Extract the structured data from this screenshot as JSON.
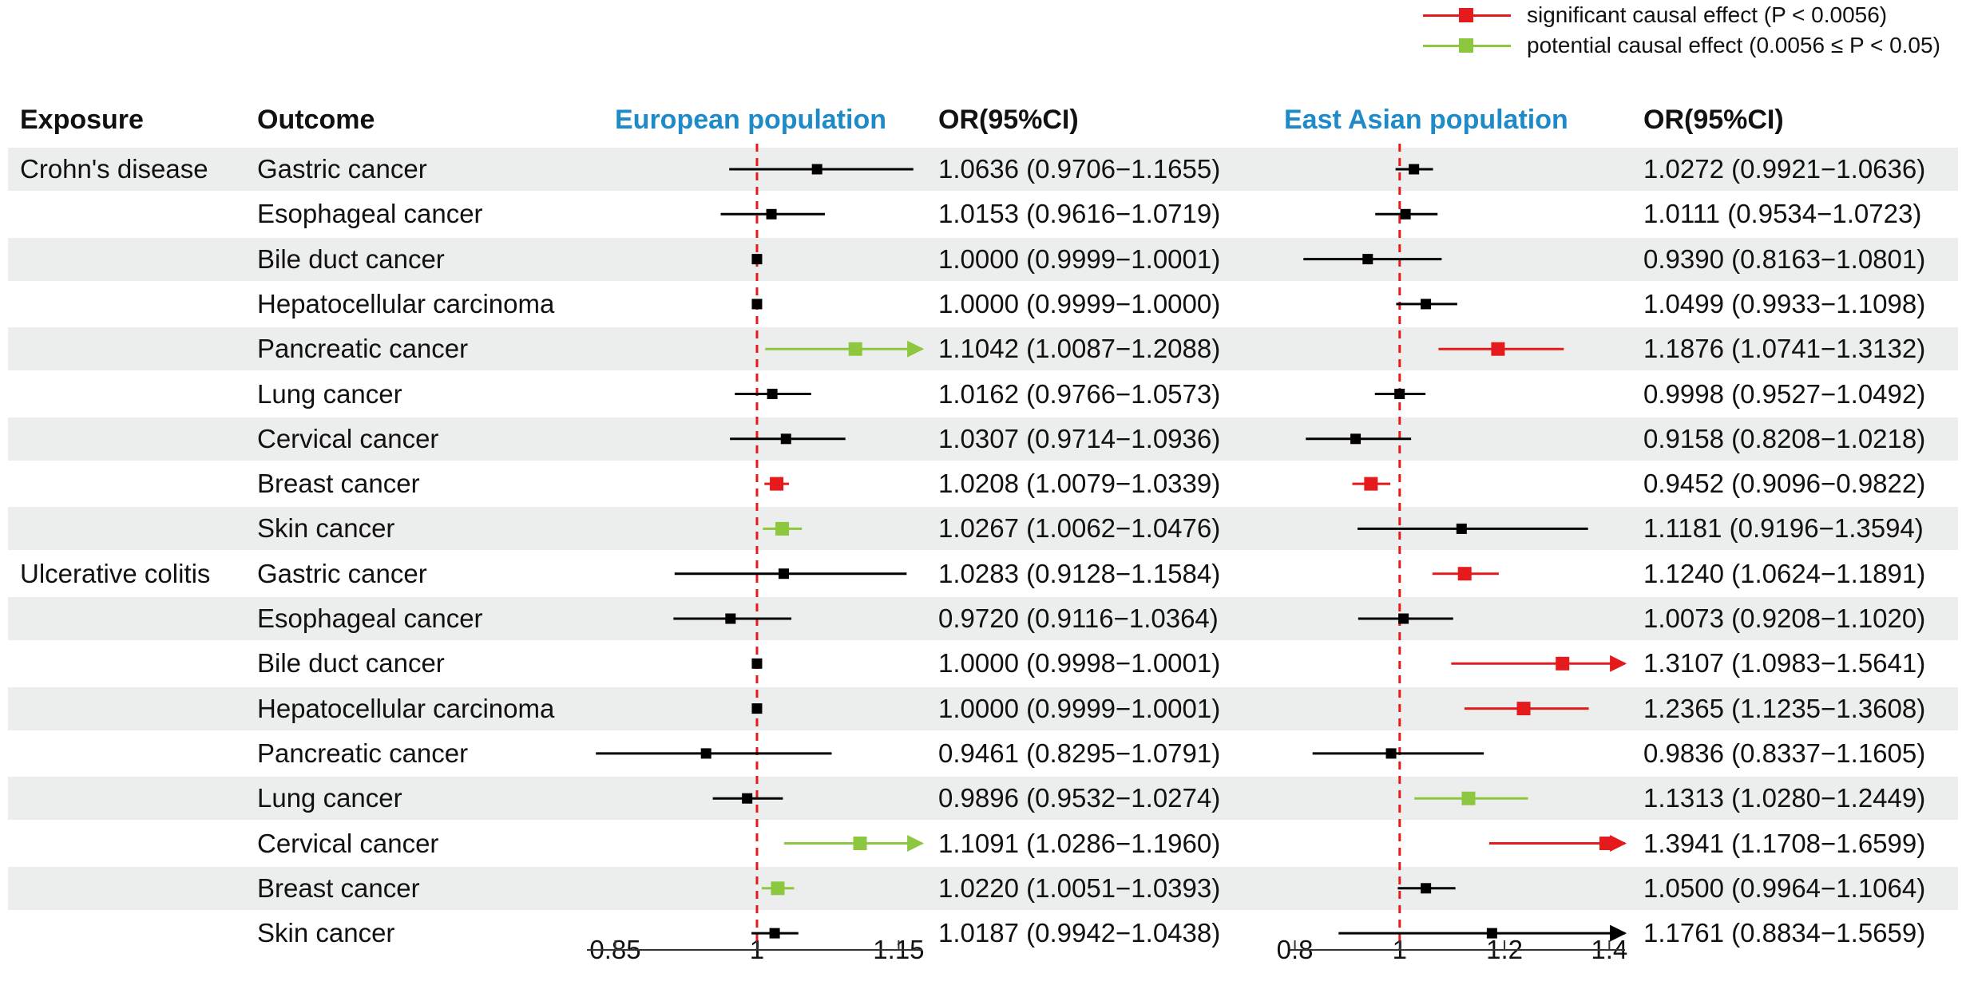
{
  "legend": [
    {
      "label": "significant causal effect (P < 0.0056)",
      "color": "#e41a1c"
    },
    {
      "label": "potential causal effect (0.0056 ≤ P < 0.05)",
      "color": "#8dc63f"
    }
  ],
  "headers": {
    "exposure": "Exposure",
    "outcome": "Outcome",
    "eu_title": "European population",
    "eu_or": "OR(95%CI)",
    "ea_title": "East Asian population",
    "ea_or": "OR(95%CI)"
  },
  "colors": {
    "significant": "#e41a1c",
    "potential": "#8dc63f",
    "ns": "#000000",
    "refline": "#e41a1c",
    "stripe": "#eceeed",
    "title": "#1e8bc8"
  },
  "chart_data": {
    "type": "forest",
    "panels": [
      {
        "name": "European population",
        "xlim": [
          0.82,
          1.175
        ],
        "ticks": [
          0.85,
          1,
          1.15
        ],
        "tick_labels": [
          "0.85",
          "1",
          "1.15"
        ],
        "ref": 1
      },
      {
        "name": "East Asian population",
        "xlim": [
          0.79,
          1.43
        ],
        "ticks": [
          0.8,
          1,
          1.2,
          1.4
        ],
        "tick_labels": [
          "0.8",
          "1",
          "1.2",
          "1.4"
        ],
        "ref": 1
      }
    ],
    "rows": [
      {
        "exposure": "Crohn's disease",
        "outcome": "Gastric cancer",
        "eu": {
          "or": 1.0636,
          "lo": 0.9706,
          "hi": 1.1655,
          "text": "1.0636 (0.9706−1.1655)",
          "sig": "ns"
        },
        "ea": {
          "or": 1.0272,
          "lo": 0.9921,
          "hi": 1.0636,
          "text": "1.0272 (0.9921−1.0636)",
          "sig": "ns"
        }
      },
      {
        "exposure": "",
        "outcome": "Esophageal cancer",
        "eu": {
          "or": 1.0153,
          "lo": 0.9616,
          "hi": 1.0719,
          "text": "1.0153 (0.9616−1.0719)",
          "sig": "ns"
        },
        "ea": {
          "or": 1.0111,
          "lo": 0.9534,
          "hi": 1.0723,
          "text": "1.0111 (0.9534−1.0723)",
          "sig": "ns"
        }
      },
      {
        "exposure": "",
        "outcome": "Bile duct cancer",
        "eu": {
          "or": 1.0,
          "lo": 0.9999,
          "hi": 1.0001,
          "text": "1.0000 (0.9999−1.0001)",
          "sig": "ns"
        },
        "ea": {
          "or": 0.939,
          "lo": 0.8163,
          "hi": 1.0801,
          "text": "0.9390 (0.8163−1.0801)",
          "sig": "ns"
        }
      },
      {
        "exposure": "",
        "outcome": "Hepatocellular carcinoma",
        "eu": {
          "or": 1.0,
          "lo": 0.9999,
          "hi": 1.0,
          "text": "1.0000 (0.9999−1.0000)",
          "sig": "ns"
        },
        "ea": {
          "or": 1.0499,
          "lo": 0.9933,
          "hi": 1.1098,
          "text": "1.0499 (0.9933−1.1098)",
          "sig": "ns"
        }
      },
      {
        "exposure": "",
        "outcome": "Pancreatic cancer",
        "eu": {
          "or": 1.1042,
          "lo": 1.0087,
          "hi": 1.2088,
          "text": "1.1042 (1.0087−1.2088)",
          "sig": "potential"
        },
        "ea": {
          "or": 1.1876,
          "lo": 1.0741,
          "hi": 1.3132,
          "text": "1.1876 (1.0741−1.3132)",
          "sig": "significant"
        }
      },
      {
        "exposure": "",
        "outcome": "Lung cancer",
        "eu": {
          "or": 1.0162,
          "lo": 0.9766,
          "hi": 1.0573,
          "text": "1.0162 (0.9766−1.0573)",
          "sig": "ns"
        },
        "ea": {
          "or": 0.9998,
          "lo": 0.9527,
          "hi": 1.0492,
          "text": "0.9998 (0.9527−1.0492)",
          "sig": "ns"
        }
      },
      {
        "exposure": "",
        "outcome": "Cervical cancer",
        "eu": {
          "or": 1.0307,
          "lo": 0.9714,
          "hi": 1.0936,
          "text": "1.0307 (0.9714−1.0936)",
          "sig": "ns"
        },
        "ea": {
          "or": 0.9158,
          "lo": 0.8208,
          "hi": 1.0218,
          "text": "0.9158 (0.8208−1.0218)",
          "sig": "ns"
        }
      },
      {
        "exposure": "",
        "outcome": "Breast cancer",
        "eu": {
          "or": 1.0208,
          "lo": 1.0079,
          "hi": 1.0339,
          "text": "1.0208 (1.0079−1.0339)",
          "sig": "significant"
        },
        "ea": {
          "or": 0.9452,
          "lo": 0.9096,
          "hi": 0.9822,
          "text": "0.9452 (0.9096−0.9822)",
          "sig": "significant"
        }
      },
      {
        "exposure": "",
        "outcome": "Skin cancer",
        "eu": {
          "or": 1.0267,
          "lo": 1.0062,
          "hi": 1.0476,
          "text": "1.0267 (1.0062−1.0476)",
          "sig": "potential"
        },
        "ea": {
          "or": 1.1181,
          "lo": 0.9196,
          "hi": 1.3594,
          "text": "1.1181 (0.9196−1.3594)",
          "sig": "ns"
        }
      },
      {
        "exposure": "Ulcerative colitis",
        "outcome": "Gastric cancer",
        "eu": {
          "or": 1.0283,
          "lo": 0.9128,
          "hi": 1.1584,
          "text": "1.0283 (0.9128−1.1584)",
          "sig": "ns"
        },
        "ea": {
          "or": 1.124,
          "lo": 1.0624,
          "hi": 1.1891,
          "text": "1.1240 (1.0624−1.1891)",
          "sig": "significant"
        }
      },
      {
        "exposure": "",
        "outcome": "Esophageal cancer",
        "eu": {
          "or": 0.972,
          "lo": 0.9116,
          "hi": 1.0364,
          "text": "0.9720 (0.9116−1.0364)",
          "sig": "ns"
        },
        "ea": {
          "or": 1.0073,
          "lo": 0.9208,
          "hi": 1.102,
          "text": "1.0073 (0.9208−1.1020)",
          "sig": "ns"
        }
      },
      {
        "exposure": "",
        "outcome": "Bile duct cancer",
        "eu": {
          "or": 1.0,
          "lo": 0.9998,
          "hi": 1.0001,
          "text": "1.0000 (0.9998−1.0001)",
          "sig": "ns"
        },
        "ea": {
          "or": 1.3107,
          "lo": 1.0983,
          "hi": 1.5641,
          "text": "1.3107 (1.0983−1.5641)",
          "sig": "significant"
        }
      },
      {
        "exposure": "",
        "outcome": "Hepatocellular carcinoma",
        "eu": {
          "or": 1.0,
          "lo": 0.9999,
          "hi": 1.0001,
          "text": "1.0000 (0.9999−1.0001)",
          "sig": "ns"
        },
        "ea": {
          "or": 1.2365,
          "lo": 1.1235,
          "hi": 1.3608,
          "text": "1.2365 (1.1235−1.3608)",
          "sig": "significant"
        }
      },
      {
        "exposure": "",
        "outcome": "Pancreatic cancer",
        "eu": {
          "or": 0.9461,
          "lo": 0.8295,
          "hi": 1.0791,
          "text": "0.9461 (0.8295−1.0791)",
          "sig": "ns"
        },
        "ea": {
          "or": 0.9836,
          "lo": 0.8337,
          "hi": 1.1605,
          "text": "0.9836 (0.8337−1.1605)",
          "sig": "ns"
        }
      },
      {
        "exposure": "",
        "outcome": "Lung cancer",
        "eu": {
          "or": 0.9896,
          "lo": 0.9532,
          "hi": 1.0274,
          "text": "0.9896 (0.9532−1.0274)",
          "sig": "ns"
        },
        "ea": {
          "or": 1.1313,
          "lo": 1.028,
          "hi": 1.2449,
          "text": "1.1313 (1.0280−1.2449)",
          "sig": "potential"
        }
      },
      {
        "exposure": "",
        "outcome": "Cervical cancer",
        "eu": {
          "or": 1.1091,
          "lo": 1.0286,
          "hi": 1.196,
          "text": "1.1091 (1.0286−1.1960)",
          "sig": "potential"
        },
        "ea": {
          "or": 1.3941,
          "lo": 1.1708,
          "hi": 1.6599,
          "text": "1.3941 (1.1708−1.6599)",
          "sig": "significant"
        }
      },
      {
        "exposure": "",
        "outcome": "Breast cancer",
        "eu": {
          "or": 1.022,
          "lo": 1.0051,
          "hi": 1.0393,
          "text": "1.0220 (1.0051−1.0393)",
          "sig": "potential"
        },
        "ea": {
          "or": 1.05,
          "lo": 0.9964,
          "hi": 1.1064,
          "text": "1.0500 (0.9964−1.1064)",
          "sig": "ns"
        }
      },
      {
        "exposure": "",
        "outcome": "Skin cancer",
        "eu": {
          "or": 1.0187,
          "lo": 0.9942,
          "hi": 1.0438,
          "text": "1.0187 (0.9942−1.0438)",
          "sig": "ns"
        },
        "ea": {
          "or": 1.1761,
          "lo": 0.8834,
          "hi": 1.5659,
          "text": "1.1761 (0.8834−1.5659)",
          "sig": "ns"
        }
      }
    ]
  }
}
